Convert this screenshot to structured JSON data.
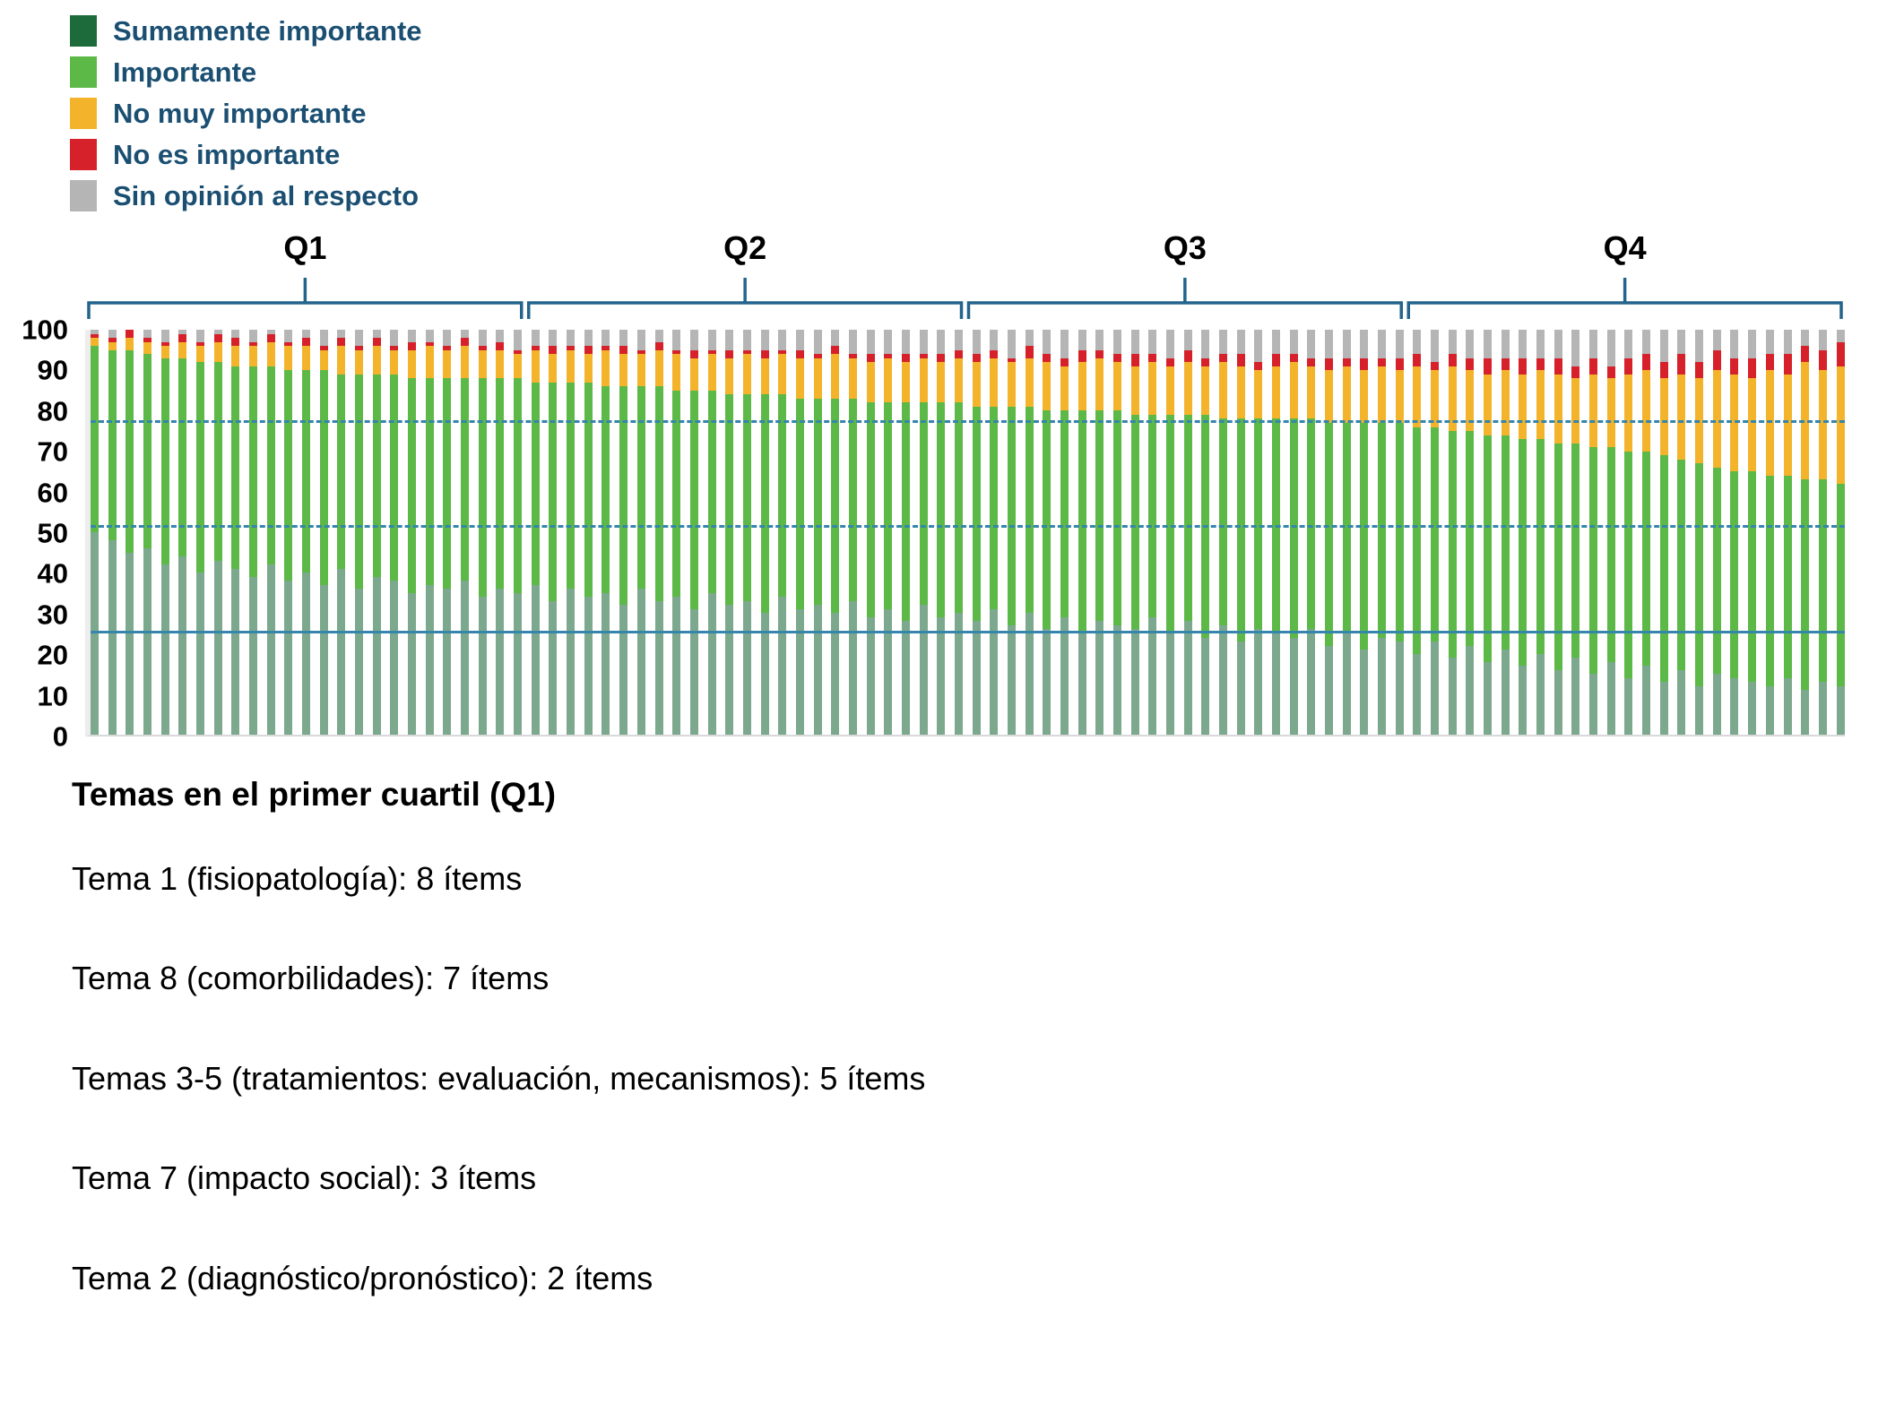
{
  "legend": {
    "items": [
      {
        "key": "sumamente",
        "label": "Sumamente importante"
      },
      {
        "key": "importante",
        "label": "Importante"
      },
      {
        "key": "no_muy_importante",
        "label": "No muy importante"
      },
      {
        "key": "no_es_importante",
        "label": "No es importante"
      },
      {
        "key": "sin_opinion",
        "label": "Sin opinión al respecto"
      }
    ],
    "label_color": "#1b4f72"
  },
  "footer": {
    "title": "Temas en el primer cuartil (Q1)",
    "lines": [
      "Tema 1 (fisiopatología): 8 ítems",
      "Tema 8 (comorbilidades): 7 ítems",
      "Temas 3-5 (tratamientos: evaluación, mecanismos): 5 ítems",
      "Tema 7 (impacto social): 3 ítems",
      "Tema 2 (diagnóstico/pronóstico): 2 ítems"
    ]
  },
  "chart_data": {
    "type": "bar",
    "stacked": true,
    "n_bars": 100,
    "ylim": [
      0,
      100
    ],
    "y_ticks": [
      0,
      10,
      20,
      30,
      40,
      50,
      60,
      70,
      80,
      90,
      100
    ],
    "quartiles": [
      {
        "label": "Q1"
      },
      {
        "label": "Q2"
      },
      {
        "label": "Q3"
      },
      {
        "label": "Q4"
      }
    ],
    "bracket_color": "#23648c",
    "reference_line_color": "#3585ad",
    "reference_lines": [
      {
        "value": 77,
        "style": "dashed"
      },
      {
        "value": 51,
        "style": "dashed"
      },
      {
        "value": 25,
        "style": "solid"
      }
    ],
    "series": [
      {
        "name": "Sumamente importante",
        "key": "sumamente",
        "color": "#1d6b3a",
        "values": [
          50,
          48,
          45,
          46,
          42,
          44,
          40,
          43,
          41,
          39,
          42,
          38,
          40,
          37,
          41,
          36,
          39,
          38,
          35,
          37,
          36,
          38,
          34,
          36,
          35,
          37,
          33,
          36,
          34,
          35,
          32,
          36,
          33,
          34,
          31,
          35,
          32,
          33,
          30,
          34,
          31,
          32,
          30,
          33,
          29,
          31,
          28,
          32,
          29,
          30,
          28,
          31,
          27,
          30,
          26,
          29,
          25,
          28,
          27,
          26,
          29,
          25,
          28,
          24,
          27,
          23,
          26,
          25,
          24,
          26,
          22,
          25,
          21,
          24,
          23,
          20,
          23,
          19,
          22,
          18,
          21,
          17,
          20,
          16,
          19,
          15,
          18,
          14,
          17,
          13,
          16,
          12,
          15,
          14,
          13,
          12,
          14,
          11,
          13,
          12
        ]
      },
      {
        "name": "Importante",
        "key": "importante",
        "color": "#5cb947",
        "values": [
          46,
          47,
          50,
          48,
          51,
          49,
          52,
          49,
          50,
          52,
          49,
          52,
          50,
          53,
          48,
          53,
          50,
          51,
          53,
          51,
          52,
          50,
          54,
          52,
          53,
          50,
          54,
          51,
          53,
          51,
          54,
          50,
          53,
          51,
          54,
          50,
          52,
          51,
          54,
          50,
          52,
          51,
          53,
          50,
          53,
          51,
          54,
          50,
          53,
          52,
          53,
          50,
          54,
          51,
          54,
          51,
          55,
          52,
          53,
          53,
          50,
          54,
          51,
          55,
          51,
          55,
          52,
          53,
          54,
          52,
          55,
          52,
          56,
          53,
          54,
          56,
          53,
          56,
          53,
          56,
          53,
          56,
          53,
          56,
          53,
          56,
          53,
          56,
          53,
          56,
          52,
          55,
          51,
          51,
          52,
          52,
          50,
          52,
          50,
          50
        ]
      },
      {
        "name": "No muy importante",
        "key": "no_muy_importante",
        "color": "#f3b42c",
        "values": [
          2,
          2,
          3,
          3,
          3,
          4,
          4,
          5,
          5,
          5,
          6,
          6,
          6,
          5,
          7,
          6,
          7,
          6,
          7,
          8,
          7,
          8,
          7,
          7,
          6,
          8,
          7,
          8,
          7,
          9,
          8,
          8,
          9,
          9,
          8,
          9,
          9,
          10,
          9,
          10,
          10,
          10,
          11,
          10,
          10,
          11,
          10,
          11,
          10,
          11,
          11,
          12,
          11,
          12,
          12,
          11,
          12,
          13,
          12,
          12,
          13,
          12,
          13,
          12,
          14,
          13,
          12,
          13,
          14,
          13,
          13,
          14,
          13,
          14,
          13,
          15,
          14,
          16,
          15,
          15,
          16,
          16,
          17,
          17,
          16,
          18,
          17,
          19,
          20,
          19,
          21,
          21,
          24,
          24,
          23,
          26,
          25,
          29,
          27,
          29
        ]
      },
      {
        "name": "No es importante",
        "key": "no_es_importante",
        "color": "#d7212a",
        "values": [
          1,
          1,
          2,
          1,
          1,
          2,
          1,
          2,
          2,
          1,
          2,
          1,
          2,
          1,
          2,
          1,
          2,
          1,
          2,
          1,
          1,
          2,
          1,
          2,
          1,
          1,
          2,
          1,
          2,
          1,
          2,
          1,
          2,
          1,
          2,
          1,
          2,
          1,
          2,
          1,
          2,
          1,
          2,
          1,
          2,
          1,
          2,
          1,
          2,
          2,
          2,
          2,
          1,
          3,
          2,
          2,
          3,
          2,
          2,
          3,
          2,
          2,
          3,
          2,
          2,
          3,
          2,
          3,
          2,
          2,
          3,
          2,
          3,
          2,
          3,
          3,
          2,
          3,
          3,
          4,
          3,
          4,
          3,
          4,
          3,
          4,
          3,
          4,
          4,
          4,
          5,
          4,
          5,
          4,
          5,
          4,
          5,
          4,
          5,
          6
        ]
      },
      {
        "name": "Sin opinión al respecto",
        "key": "sin_opinion",
        "color": "#b5b5b5",
        "values": [
          1,
          2,
          0,
          2,
          3,
          1,
          3,
          1,
          2,
          3,
          1,
          3,
          2,
          4,
          2,
          4,
          2,
          4,
          3,
          3,
          4,
          2,
          4,
          3,
          5,
          4,
          4,
          4,
          4,
          4,
          4,
          5,
          3,
          5,
          5,
          5,
          5,
          5,
          5,
          5,
          5,
          6,
          4,
          6,
          6,
          6,
          6,
          6,
          6,
          5,
          6,
          5,
          7,
          4,
          6,
          7,
          5,
          5,
          6,
          6,
          6,
          7,
          5,
          7,
          6,
          6,
          8,
          6,
          6,
          7,
          7,
          7,
          7,
          7,
          7,
          6,
          8,
          6,
          7,
          7,
          7,
          7,
          7,
          7,
          9,
          7,
          9,
          7,
          6,
          8,
          6,
          8,
          5,
          7,
          7,
          6,
          6,
          4,
          5,
          3
        ]
      }
    ]
  }
}
